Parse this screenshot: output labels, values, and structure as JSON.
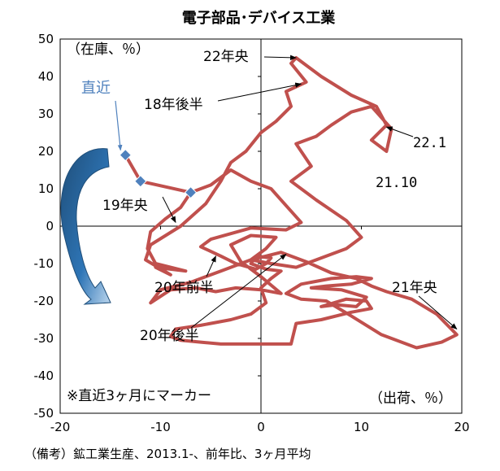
{
  "chart_data": {
    "type": "line",
    "title": "電子部品･デバイス工業",
    "ylabel": "（在庫、％）",
    "xlabel": "（出荷、％）",
    "xlim": [
      -20,
      20
    ],
    "ylim": [
      -50,
      50
    ],
    "xticks": [
      -20,
      -10,
      0,
      10,
      20
    ],
    "yticks": [
      50,
      40,
      30,
      20,
      10,
      0,
      -10,
      -20,
      -30,
      -40,
      -50
    ],
    "grid": false,
    "series_color": "#C0504D",
    "marker_color": "#4F81BD",
    "arrow_color": "#1F4E79",
    "series": [
      {
        "name": "",
        "points": [
          [
            -7.0,
            9.0
          ],
          [
            -8.0,
            5.0
          ],
          [
            -9.5,
            2.0
          ],
          [
            -11.0,
            -1.5
          ],
          [
            -11.3,
            -6.0
          ],
          [
            -10.5,
            -10.0
          ],
          [
            -7.5,
            -12.0
          ],
          [
            -10.5,
            -11.0
          ],
          [
            -9.0,
            -13.0
          ],
          [
            -11.5,
            -9.0
          ],
          [
            -11.0,
            -5.0
          ],
          [
            -8.0,
            0.0
          ],
          [
            -5.5,
            6.0
          ],
          [
            -4.0,
            12.0
          ],
          [
            -3.0,
            17.0
          ],
          [
            -1.5,
            20.0
          ],
          [
            0.0,
            25.0
          ],
          [
            1.5,
            28.0
          ],
          [
            3.0,
            32.0
          ],
          [
            2.5,
            36.0
          ],
          [
            4.5,
            38.5
          ],
          [
            3.0,
            43.5
          ],
          [
            3.5,
            45.0
          ],
          [
            6.0,
            40.0
          ],
          [
            9.0,
            35.0
          ],
          [
            11.5,
            32.0
          ],
          [
            12.5,
            27.0
          ],
          [
            11.0,
            23.0
          ],
          [
            12.5,
            20.0
          ],
          [
            13.0,
            26.0
          ],
          [
            11.0,
            32.0
          ],
          [
            9.0,
            30.5
          ],
          [
            7.0,
            27.0
          ],
          [
            5.5,
            24.0
          ],
          [
            3.5,
            22.0
          ],
          [
            5.0,
            16.0
          ],
          [
            3.0,
            12.0
          ],
          [
            5.5,
            7.0
          ],
          [
            8.5,
            1.5
          ],
          [
            10.0,
            -3.0
          ],
          [
            8.5,
            -6.0
          ],
          [
            6.0,
            -8.5
          ],
          [
            3.5,
            -11.0
          ],
          [
            1.0,
            -10.0
          ],
          [
            -1.0,
            -9.0
          ],
          [
            0.5,
            -6.0
          ],
          [
            1.5,
            -3.0
          ],
          [
            -1.0,
            -2.5
          ],
          [
            -3.0,
            -5.0
          ],
          [
            -2.0,
            -9.5
          ],
          [
            0.0,
            -13.5
          ],
          [
            2.0,
            -18.0
          ],
          [
            0.0,
            -17.0
          ],
          [
            -2.5,
            -16.5
          ],
          [
            -4.5,
            -17.5
          ],
          [
            -6.5,
            -16.5
          ],
          [
            -9.0,
            -17.0
          ],
          [
            -11.0,
            -20.5
          ],
          [
            -10.0,
            -17.0
          ],
          [
            -7.0,
            -15.0
          ],
          [
            -4.0,
            -12.0
          ],
          [
            -1.0,
            -9.0
          ],
          [
            2.0,
            -7.0
          ],
          [
            4.5,
            -9.5
          ],
          [
            7.0,
            -12.5
          ],
          [
            9.5,
            -14.0
          ],
          [
            11.0,
            -16.0
          ],
          [
            12.5,
            -17.5
          ],
          [
            15.0,
            -19.5
          ],
          [
            17.5,
            -23.5
          ],
          [
            19.5,
            -29.0
          ],
          [
            18.0,
            -31.0
          ],
          [
            15.5,
            -32.5
          ],
          [
            12.0,
            -29.0
          ],
          [
            9.0,
            -24.0
          ],
          [
            6.5,
            -20.0
          ],
          [
            4.0,
            -19.5
          ],
          [
            2.5,
            -18.0
          ],
          [
            4.0,
            -15.5
          ],
          [
            7.0,
            -14.0
          ],
          [
            9.5,
            -13.5
          ],
          [
            11.0,
            -14.0
          ],
          [
            9.0,
            -15.5
          ],
          [
            6.5,
            -16.0
          ],
          [
            5.0,
            -16.5
          ],
          [
            8.0,
            -17.0
          ],
          [
            10.5,
            -19.0
          ],
          [
            9.5,
            -21.5
          ],
          [
            7.5,
            -21.0
          ],
          [
            6.0,
            -21.5
          ],
          [
            8.5,
            -19.5
          ],
          [
            10.5,
            -20.0
          ],
          [
            11.0,
            -22.0
          ],
          [
            9.0,
            -23.0
          ],
          [
            6.0,
            -25.0
          ],
          [
            3.5,
            -26.0
          ],
          [
            3.0,
            -31.5
          ],
          [
            -1.0,
            -31.5
          ],
          [
            -4.0,
            -31.5
          ],
          [
            -6.0,
            -31.0
          ],
          [
            -8.0,
            -30.5
          ],
          [
            -9.0,
            -29.5
          ],
          [
            -8.5,
            -27.5
          ],
          [
            -6.0,
            -26.5
          ],
          [
            -3.0,
            -25.0
          ],
          [
            -1.0,
            -23.5
          ],
          [
            0.5,
            -20.5
          ],
          [
            0.0,
            -16.5
          ],
          [
            1.0,
            -14.0
          ],
          [
            2.0,
            -12.0
          ],
          [
            0.5,
            -11.5
          ],
          [
            -1.0,
            -10.0
          ],
          [
            -0.5,
            -8.0
          ],
          [
            1.0,
            -8.5
          ],
          [
            0.5,
            -10.0
          ],
          [
            -0.5,
            -11.5
          ],
          [
            -2.5,
            -10.0
          ],
          [
            -4.0,
            -8.0
          ],
          [
            -6.0,
            -5.5
          ],
          [
            -5.0,
            -3.5
          ],
          [
            -3.0,
            -2.0
          ],
          [
            -1.0,
            -0.5
          ],
          [
            2.5,
            -1.0
          ],
          [
            4.0,
            1.0
          ],
          [
            3.0,
            4.0
          ],
          [
            2.0,
            7.0
          ],
          [
            1.0,
            10.0
          ],
          [
            -1.0,
            12.0
          ],
          [
            -3.0,
            15.0
          ],
          [
            -5.0,
            11.0
          ],
          [
            -7.0,
            9.0
          ],
          [
            -12.0,
            12.0
          ],
          [
            -13.5,
            19.0
          ]
        ]
      }
    ],
    "markers": [
      [
        -7.0,
        9.0
      ],
      [
        -12.0,
        12.0
      ],
      [
        -13.5,
        19.0
      ]
    ],
    "annotations": [
      {
        "text": "直近",
        "at": [
          -13.5,
          19.0
        ]
      },
      {
        "text": "22年央",
        "at": [
          3.5,
          45.0
        ]
      },
      {
        "text": "18年後半",
        "at": [
          4.0,
          38.0
        ]
      },
      {
        "text": "22.1",
        "at": [
          12.5,
          26.5
        ]
      },
      {
        "text": "21.10",
        "at": null
      },
      {
        "text": "19年央",
        "at": [
          -8.5,
          1.0
        ]
      },
      {
        "text": "20年前半",
        "at": [
          -4.5,
          -8.0
        ]
      },
      {
        "text": "21年央",
        "at": [
          19.5,
          -27.5
        ]
      },
      {
        "text": "20年後半",
        "at": [
          2.5,
          -7.5
        ]
      }
    ],
    "note": "※直近3ヶ月にマーカー"
  },
  "footnote": "（備考）鉱工業生産、2013.1-、前年比、3ヶ月平均"
}
